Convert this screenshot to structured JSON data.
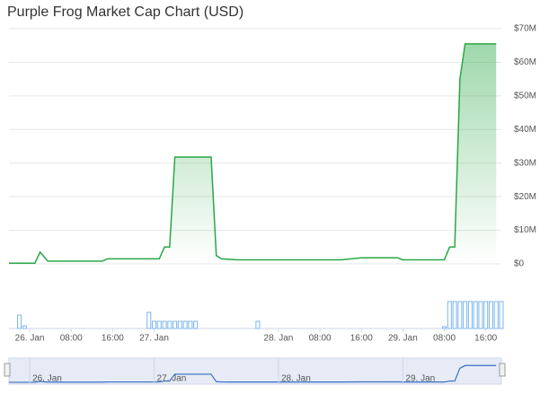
{
  "chart_data": {
    "type": "area",
    "title": "Purple Frog Market Cap Chart (USD)",
    "x": [
      -4,
      1,
      2,
      3.5,
      14,
      15,
      25,
      26,
      27,
      28,
      35,
      36,
      37,
      40,
      50,
      60,
      64,
      71,
      72,
      80,
      81,
      82,
      83,
      84,
      90
    ],
    "series": [
      {
        "name": "Market Cap",
        "color": "#2aa745",
        "values": [
          0.2,
          0.2,
          3.5,
          0.8,
          0.8,
          1.5,
          1.5,
          5,
          5,
          31.8,
          31.8,
          2.5,
          1.5,
          1.2,
          1.2,
          1.2,
          1.8,
          1.8,
          1.2,
          1.2,
          5,
          5,
          55,
          65.5,
          65.5
        ]
      }
    ],
    "xlim": [
      -4,
      91
    ],
    "xticks": [
      {
        "value": 0,
        "label": "26. Jan"
      },
      {
        "value": 8,
        "label": "08:00"
      },
      {
        "value": 16,
        "label": "16:00"
      },
      {
        "value": 24,
        "label": "27. Jan"
      },
      {
        "value": 48,
        "label": "28. Jan"
      },
      {
        "value": 56,
        "label": "08:00"
      },
      {
        "value": 64,
        "label": "16:00"
      },
      {
        "value": 72,
        "label": "29. Jan"
      },
      {
        "value": 80,
        "label": "08:00"
      },
      {
        "value": 88,
        "label": "16:00"
      }
    ],
    "ylim": [
      0,
      70
    ],
    "yticks": [
      {
        "value": 0,
        "label": "$0"
      },
      {
        "value": 10,
        "label": "$10M"
      },
      {
        "value": 20,
        "label": "$20M"
      },
      {
        "value": 30,
        "label": "$30M"
      },
      {
        "value": 40,
        "label": "$40M"
      },
      {
        "value": 50,
        "label": "$50M"
      },
      {
        "value": 60,
        "label": "$60M"
      },
      {
        "value": 70,
        "label": "$70M"
      }
    ],
    "grid": true,
    "volume": {
      "color": "#7cb5ec",
      "x": [
        -2,
        -1,
        23,
        24,
        25,
        26,
        27,
        28,
        29,
        30,
        31,
        32,
        44,
        80,
        81,
        82,
        83,
        84,
        85,
        86,
        87,
        88,
        89,
        90,
        91
      ],
      "values": [
        15,
        3,
        18,
        8,
        8,
        8,
        8,
        8,
        8,
        8,
        8,
        8,
        8,
        2,
        30,
        30,
        30,
        30,
        30,
        30,
        30,
        30,
        30,
        30,
        30
      ]
    }
  }
}
